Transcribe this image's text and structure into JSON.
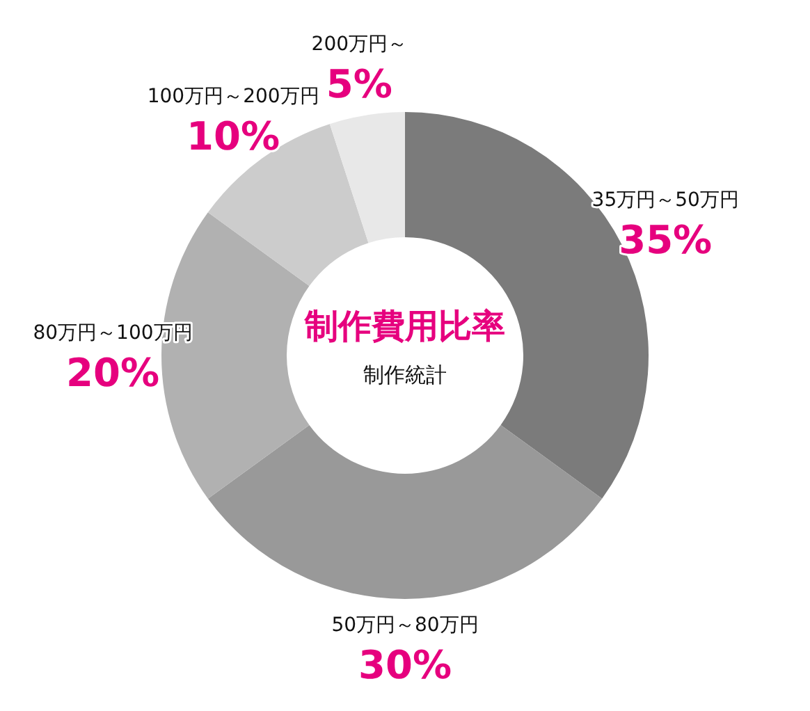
{
  "chart_data": {
    "type": "donut",
    "title": "制作費用比率",
    "subtitle": "制作統計",
    "categories": [
      "35万円～50万円",
      "50万円～80万円",
      "80万円～100万円",
      "100万円～200万円",
      "200万円～"
    ],
    "values": [
      35,
      30,
      20,
      10,
      5
    ],
    "colors": [
      "#7b7b7b",
      "#999999",
      "#b1b1b1",
      "#cccccc",
      "#e8e8e8"
    ],
    "value_labels": [
      "35%",
      "30%",
      "20%",
      "10%",
      "5%"
    ]
  }
}
